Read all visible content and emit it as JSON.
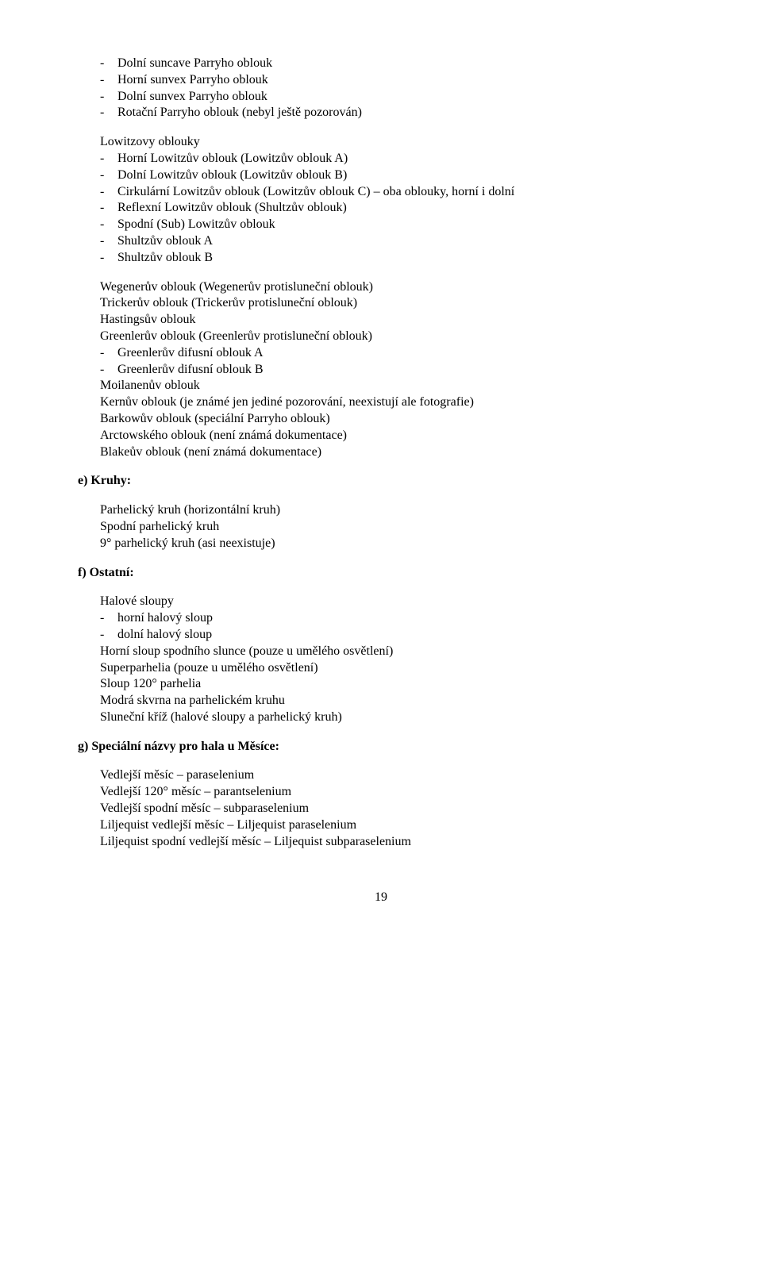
{
  "listA": [
    "Dolní suncave Parryho oblouk",
    "Horní sunvex Parryho oblouk",
    "Dolní sunvex Parryho oblouk",
    "Rotační Parryho oblouk (nebyl ještě pozorován)"
  ],
  "lowitzTitle": "Lowitzovy oblouky",
  "listB": [
    "Horní Lowitzův oblouk (Lowitzův oblouk A)",
    "Dolní Lowitzův oblouk (Lowitzův oblouk B)",
    "Cirkulární Lowitzův oblouk (Lowitzův oblouk C) – oba oblouky, horní i dolní",
    "Reflexní Lowitzův oblouk (Shultzův oblouk)",
    "Spodní (Sub) Lowitzův oblouk",
    "Shultzův oblouk A",
    "Shultzův oblouk B"
  ],
  "paraC": [
    "Wegenerův oblouk (Wegenerův protisluneční oblouk)",
    "Trickerův oblouk (Trickerův protisluneční oblouk)",
    "Hastingsův oblouk",
    "Greenlerův oblouk (Greenlerův protisluneční oblouk)"
  ],
  "listC": [
    "Greenlerův difusní oblouk A",
    "Greenlerův difusní oblouk B"
  ],
  "paraD": [
    "Moilanenův oblouk",
    "Kernův oblouk (je známé jen jediné pozorování, neexistují ale fotografie)",
    "Barkowův oblouk (speciální Parryho oblouk)",
    "Arctowského oblouk (není známá dokumentace)",
    "Blakeův oblouk (není známá dokumentace)"
  ],
  "sectionE": "e)  Kruhy:",
  "paraE": [
    "Parhelický kruh (horizontální kruh)",
    "Spodní parhelický kruh",
    "9° parhelický kruh (asi neexistuje)"
  ],
  "sectionF": "f)  Ostatní:",
  "paraF1": [
    "Halové sloupy"
  ],
  "listF": [
    "horní halový sloup",
    "dolní halový sloup"
  ],
  "paraF2": [
    "Horní sloup spodního slunce (pouze u umělého osvětlení)",
    "Superparhelia (pouze u umělého osvětlení)",
    "Sloup 120° parhelia",
    "Modrá skvrna na parhelickém kruhu",
    "Sluneční kříž (halové sloupy a parhelický kruh)"
  ],
  "sectionG": "g)  Speciální názvy pro hala u Měsíce:",
  "paraG": [
    "Vedlejší měsíc – paraselenium",
    "Vedlejší 120° měsíc – parantselenium",
    "Vedlejší spodní měsíc – subparaselenium",
    "Liljequist vedlejší měsíc – Liljequist paraselenium",
    "Liljequist spodní vedlejší měsíc – Liljequist subparaselenium"
  ],
  "pageNumber": "19"
}
